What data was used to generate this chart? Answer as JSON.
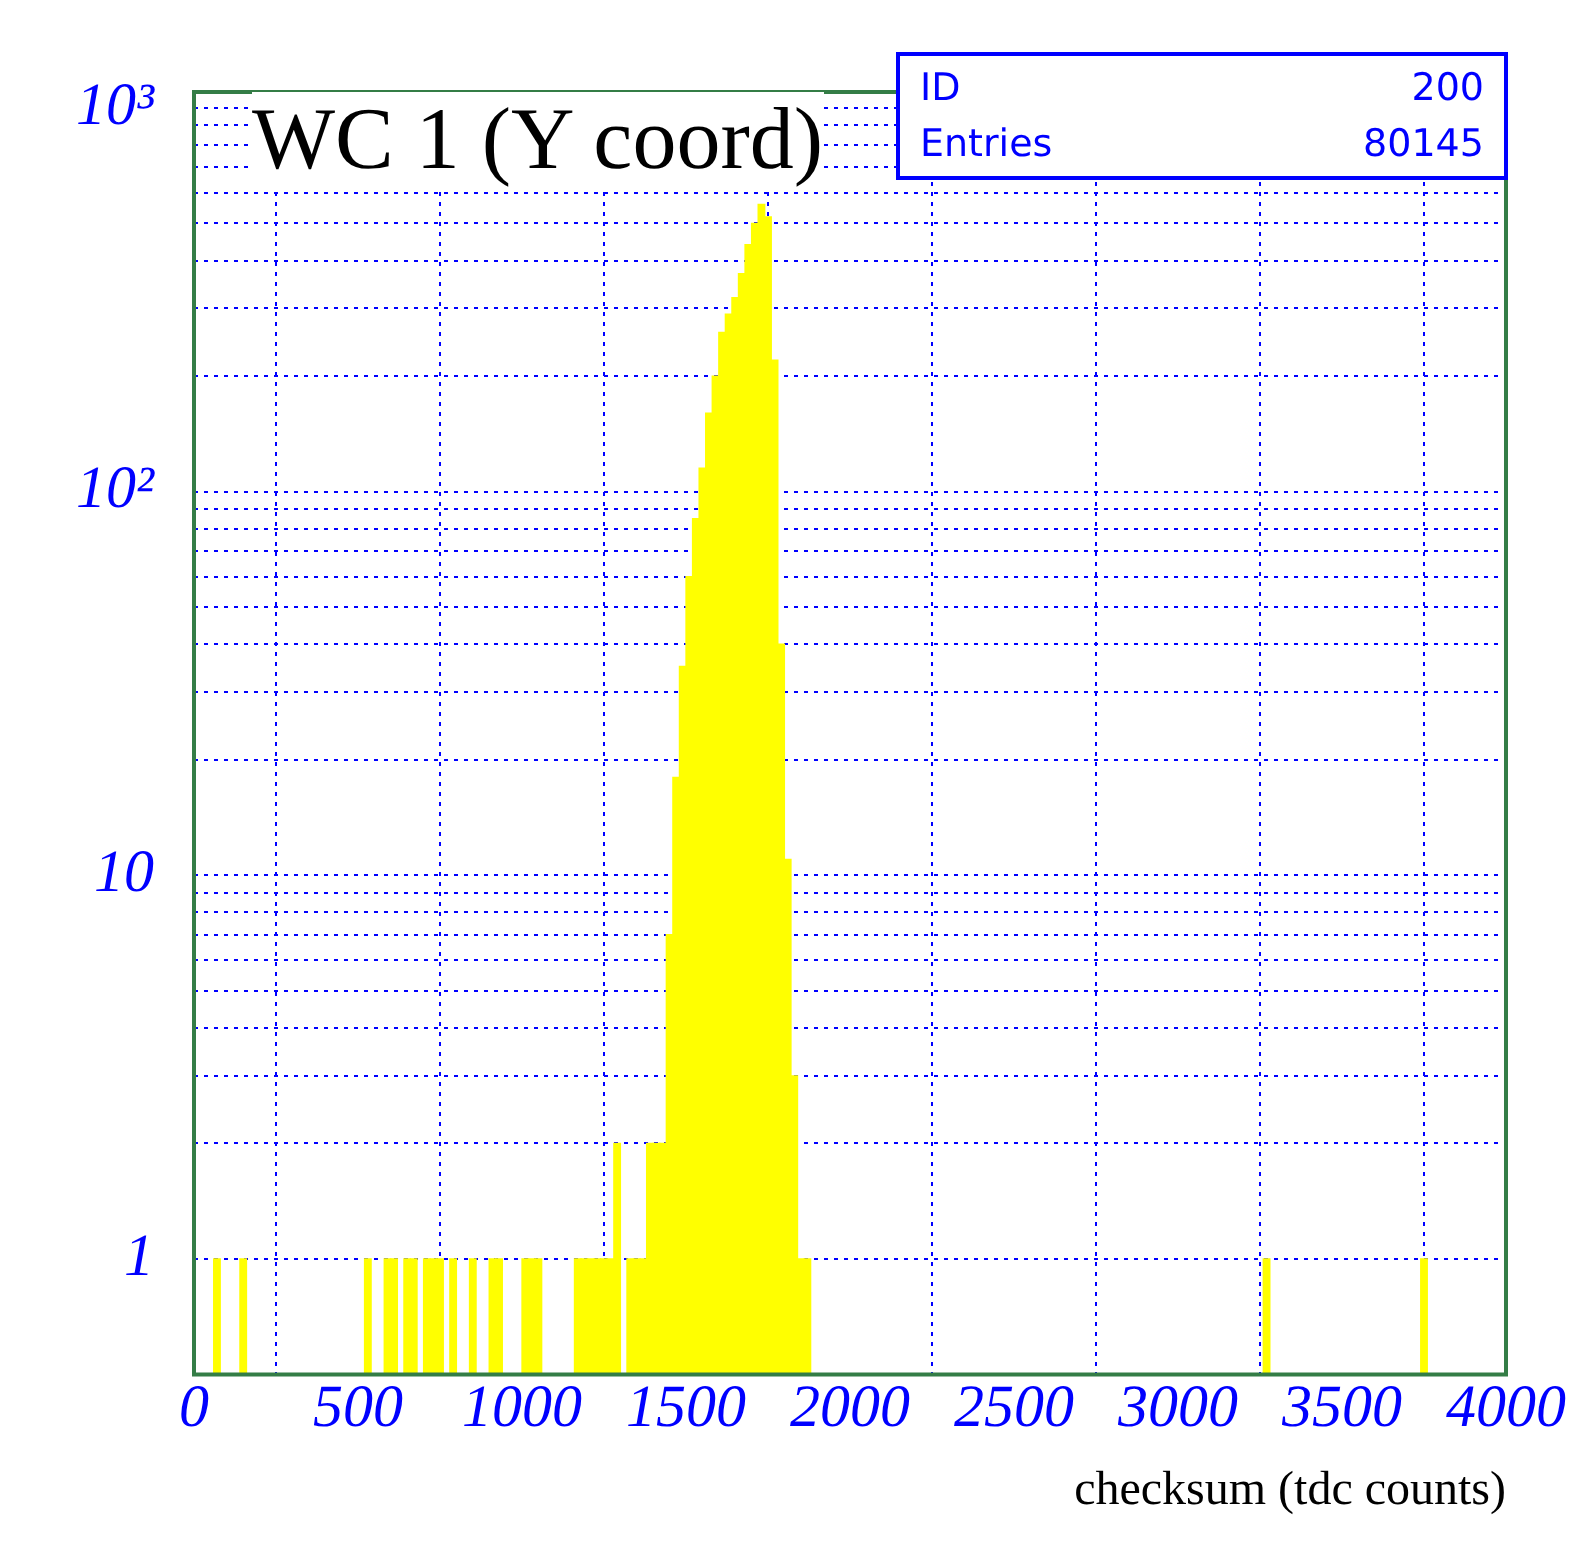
{
  "chart_data": {
    "type": "histogram",
    "title": "WC 1 (Y coord)",
    "xlabel": "checksum (tdc counts)",
    "annotations": [
      "ID",
      "200",
      "Entries",
      "80145"
    ],
    "bins": [
      0,
      20,
      40,
      60,
      80,
      100,
      120,
      140,
      160,
      180,
      200,
      220,
      240,
      260,
      280,
      300,
      320,
      340,
      360,
      380,
      400,
      420,
      440,
      460,
      480,
      500,
      520,
      540,
      560,
      580,
      600,
      620,
      640,
      660,
      680,
      700,
      720,
      740,
      760,
      780,
      800,
      820,
      840,
      860,
      880,
      900,
      920,
      940,
      960,
      980,
      1000,
      1020,
      1040,
      1060,
      1080,
      1100,
      1120,
      1140,
      1160,
      1180,
      1200,
      1220,
      1240,
      1260,
      1280,
      1300,
      1320,
      1340,
      1360,
      1380,
      1400,
      1420,
      1440,
      1460,
      1480,
      1500,
      1520,
      1540,
      1560,
      1580,
      1600,
      1620,
      1640,
      1660,
      1680,
      1700,
      1720,
      1740,
      1760,
      1780,
      1800,
      1820,
      1840,
      1860,
      1880,
      1900,
      1920,
      1940,
      1960,
      1980,
      2000,
      2020,
      2040,
      2060,
      2080,
      2100,
      2120,
      2140,
      2160,
      2180,
      2200,
      2220,
      2240,
      2260,
      2280,
      2300,
      2320,
      2340,
      2360,
      2380,
      2400,
      2420,
      2440,
      2460,
      2480,
      2500,
      2520,
      2540,
      2560,
      2580,
      2600,
      2620,
      2640,
      2660,
      2680,
      2700,
      2720,
      2740,
      2760,
      2780,
      2800,
      2820,
      2840,
      2860,
      2880,
      2900,
      2920,
      2940,
      2960,
      2980,
      3000,
      3020,
      3040,
      3060,
      3080,
      3100,
      3120,
      3140,
      3160,
      3180,
      3200,
      3220,
      3240,
      3260,
      3280,
      3300,
      3320,
      3340,
      3360,
      3380,
      3400,
      3420,
      3440,
      3460,
      3480,
      3500,
      3520,
      3540,
      3560,
      3580,
      3600,
      3620,
      3640,
      3660,
      3680,
      3700,
      3720,
      3740,
      3760,
      3780,
      3800,
      3820,
      3840,
      3860,
      3880,
      3900,
      3920,
      3940,
      3960,
      3980,
      4000
    ],
    "values": [
      null,
      null,
      null,
      1,
      null,
      null,
      null,
      1,
      null,
      null,
      null,
      null,
      null,
      null,
      null,
      null,
      null,
      null,
      null,
      null,
      null,
      null,
      null,
      null,
      null,
      null,
      1,
      null,
      null,
      1,
      1,
      null,
      1,
      1,
      null,
      1,
      1,
      1,
      null,
      1,
      null,
      null,
      1,
      null,
      null,
      1,
      1,
      null,
      null,
      null,
      1,
      1,
      1,
      null,
      null,
      null,
      null,
      null,
      1,
      1,
      1,
      1,
      1,
      1,
      2,
      null,
      1,
      1,
      1,
      2,
      2,
      2,
      7,
      18,
      35,
      60,
      85,
      115,
      160,
      200,
      260,
      290,
      320,
      370,
      440,
      500,
      560,
      520,
      220,
      40,
      11,
      3,
      1,
      1,
      null,
      null,
      null,
      null,
      null,
      null,
      null,
      null,
      null,
      null,
      null,
      null,
      null,
      null,
      null,
      null,
      null,
      null,
      null,
      null,
      null,
      null,
      null,
      null,
      null,
      null,
      null,
      null,
      null,
      null,
      null,
      null,
      null,
      null,
      null,
      null,
      null,
      null,
      null,
      null,
      null,
      null,
      null,
      null,
      null,
      null,
      null,
      null,
      null,
      null,
      null,
      null,
      null,
      null,
      null,
      null,
      null,
      null,
      null,
      null,
      null,
      null,
      null,
      null,
      null,
      null,
      null,
      null,
      null,
      1,
      null,
      null,
      null,
      null,
      null,
      null,
      null,
      null,
      null,
      null,
      null,
      null,
      null,
      null,
      null,
      null,
      null,
      null,
      null,
      null,
      null,
      null,
      null,
      1,
      null,
      null,
      null,
      null,
      null,
      null,
      null,
      null,
      null,
      null,
      null,
      null
    ],
    "color": "#ffff00",
    "xlim": [
      0,
      4000
    ],
    "xticks": [
      0,
      500,
      1000,
      1500,
      2000,
      2500,
      3000,
      3500,
      4000
    ],
    "ylim": [
      0.5,
      1100
    ],
    "log": "y",
    "yticks": [
      {
        "value": 1,
        "label": "1"
      },
      {
        "value": 2,
        "label": null
      },
      {
        "value": 3,
        "label": null
      },
      {
        "value": 4,
        "label": null
      },
      {
        "value": 5,
        "label": null
      },
      {
        "value": 6,
        "label": null
      },
      {
        "value": 7,
        "label": null
      },
      {
        "value": 8,
        "label": null
      },
      {
        "value": 9,
        "label": null
      },
      10,
      {
        "value": 20,
        "label": null
      },
      {
        "value": 30,
        "label": null
      },
      {
        "value": 40,
        "label": null
      },
      {
        "value": 50,
        "label": null
      },
      {
        "value": 60,
        "label": null
      },
      {
        "value": 70,
        "label": null
      },
      {
        "value": 80,
        "label": null
      },
      {
        "value": 90,
        "label": null
      },
      {
        "value": 100,
        "label": "10²"
      },
      {
        "value": 200,
        "label": null
      },
      {
        "value": 300,
        "label": null
      },
      {
        "value": 400,
        "label": null
      },
      {
        "value": 500,
        "label": null
      },
      {
        "value": 600,
        "label": null
      },
      {
        "value": 700,
        "label": null
      },
      {
        "value": 800,
        "label": null
      },
      {
        "value": 900,
        "label": null
      },
      {
        "value": 1000,
        "label": "10³"
      }
    ],
    "grid": true,
    "legend": false
  }
}
